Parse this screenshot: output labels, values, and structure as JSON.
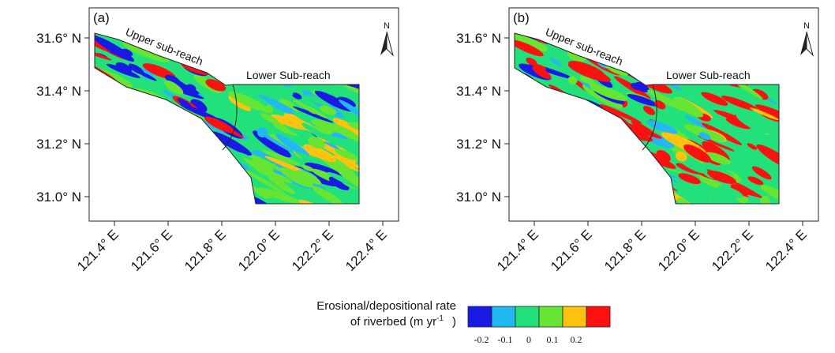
{
  "panels": [
    {
      "label": "(a)",
      "lat_ticks": [
        "31.0° N",
        "31.2° N",
        "31.4° N",
        "31.6° N"
      ],
      "lon_ticks": [
        "121.4° E",
        "121.6° E",
        "121.8° E",
        "122.0° E",
        "122.2° E",
        "122.4° E"
      ],
      "upper_label": "Upper sub-reach",
      "lower_label": "Lower Sub-reach",
      "north": "N"
    },
    {
      "label": "(b)",
      "lat_ticks": [
        "31.0° N",
        "31.2° N",
        "31.4° N",
        "31.6° N"
      ],
      "lon_ticks": [
        "121.4° E",
        "121.6° E",
        "121.8° E",
        "122.0° E",
        "122.2° E",
        "122.4° E"
      ],
      "upper_label": "Upper sub-reach",
      "lower_label": "Lower Sub-reach",
      "north": "N"
    }
  ],
  "legend": {
    "title_line1": "Erosional/depositional rate",
    "title_line2": "of riverbed (m yr",
    "title_sup": "-1",
    "title_end": ")",
    "colors": [
      "#1a1ae6",
      "#22b8f2",
      "#22e07a",
      "#66e633",
      "#ffc20e",
      "#ff1010"
    ],
    "ticks": [
      "-0.2",
      "-0.1",
      "0",
      "0.1",
      "0.2"
    ]
  }
}
